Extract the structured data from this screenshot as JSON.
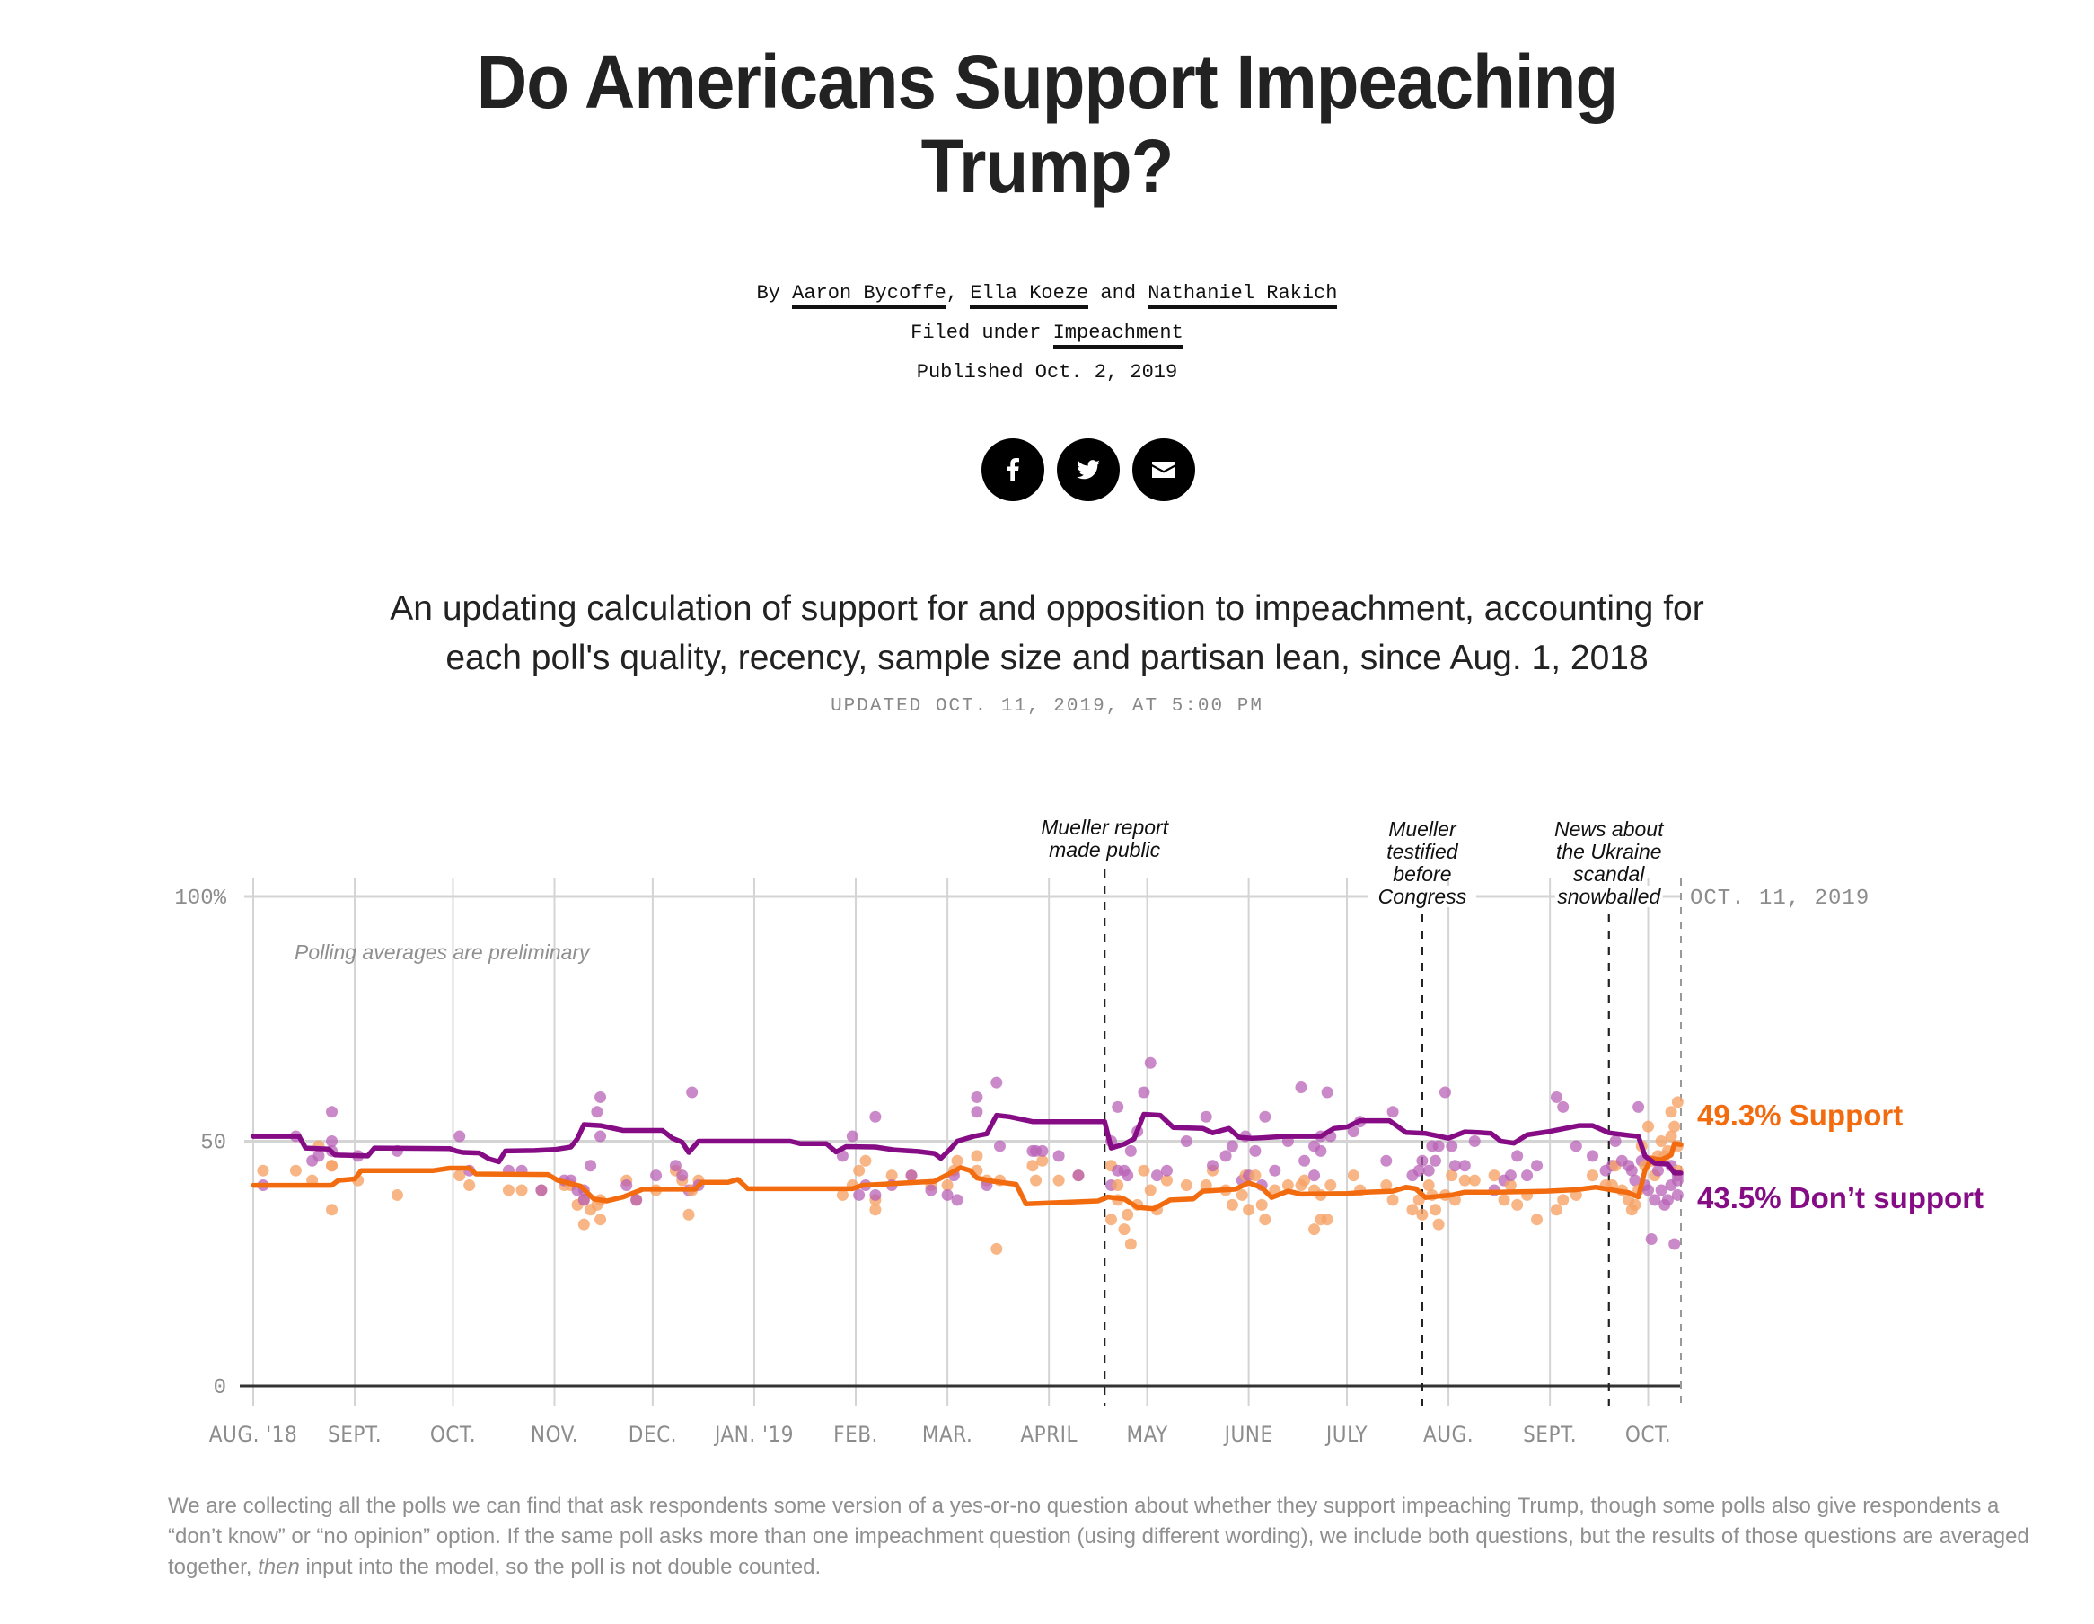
{
  "article": {
    "title_line1": "Do Americans Support Impeaching",
    "title_line2": "Trump?",
    "byline_prefix": "By",
    "authors": [
      "Aaron Bycoffe",
      "Ella Koeze",
      "Nathaniel Rakich"
    ],
    "byline_sep_comma": ",",
    "byline_sep_and": "and",
    "filed_under_label": "Filed under",
    "filed_under_topic": "Impeachment",
    "published": "Published Oct. 2, 2019",
    "share": [
      {
        "name": "facebook",
        "icon": "facebook-icon"
      },
      {
        "name": "twitter",
        "icon": "twitter-icon"
      },
      {
        "name": "email",
        "icon": "email-icon"
      }
    ],
    "subhead_line1": "An updating calculation of support for and opposition to impeachment, accounting for",
    "subhead_line2": "each poll's quality, recency, sample size and partisan lean, since Aug. 1, 2018",
    "updated": "UPDATED OCT. 11, 2019, AT 5:00 PM",
    "footnote_part1": "We are collecting all the polls we can find that ask respondents some version of a yes-or-no question about whether they support impeaching Trump, though some polls also give respondents a “don’t know” or “no opinion” option. If the same poll asks more than one impeachment question (using different wording), we include both questions, but the results of those questions are averaged together, ",
    "footnote_italic": "then",
    "footnote_part2": " input into the model, so the poll is not double counted."
  },
  "colors": {
    "support": "#F26B0F",
    "support_dot": "#F6A266",
    "oppose": "#850C85",
    "oppose_dot": "#B862B6",
    "grid": "#d4d4d4",
    "axis_text": "#8c8c8c"
  },
  "chart_data": {
    "type": "line",
    "title": "",
    "xlabel": "",
    "ylabel": "",
    "ylim": [
      0,
      100
    ],
    "x_unit": "days since Aug. 1, 2018",
    "xlim": [
      0,
      436
    ],
    "y_ticks": [
      {
        "value": 0,
        "label": "0"
      },
      {
        "value": 50,
        "label": "50"
      },
      {
        "value": 100,
        "label": "100%"
      }
    ],
    "x_ticks": [
      {
        "day": 0,
        "label": "AUG. '18"
      },
      {
        "day": 31,
        "label": "SEPT."
      },
      {
        "day": 61,
        "label": "OCT."
      },
      {
        "day": 92,
        "label": "NOV."
      },
      {
        "day": 122,
        "label": "DEC."
      },
      {
        "day": 153,
        "label": "JAN. '19"
      },
      {
        "day": 184,
        "label": "FEB."
      },
      {
        "day": 212,
        "label": "MAR."
      },
      {
        "day": 243,
        "label": "APRIL"
      },
      {
        "day": 273,
        "label": "MAY"
      },
      {
        "day": 304,
        "label": "JUNE"
      },
      {
        "day": 334,
        "label": "JULY"
      },
      {
        "day": 365,
        "label": "AUG."
      },
      {
        "day": 396,
        "label": "SEPT."
      },
      {
        "day": 426,
        "label": "OCT."
      }
    ],
    "grid": true,
    "note": "Polling averages are preliminary",
    "end_label": "OCT. 11, 2019",
    "end_day": 436,
    "events": [
      {
        "day": 260,
        "label": [
          "Mueller report",
          "made public"
        ]
      },
      {
        "day": 357,
        "label": [
          "Mueller",
          "testified",
          "before",
          "Congress"
        ]
      },
      {
        "day": 414,
        "label": [
          "News about",
          "the Ukraine",
          "scandal",
          "snowballed"
        ]
      }
    ],
    "series": [
      {
        "name": "Support",
        "final_label": "49.3% Support",
        "final_value": 49.3,
        "points": [
          [
            0,
            41
          ],
          [
            24,
            41
          ],
          [
            26,
            42
          ],
          [
            31,
            42.3
          ],
          [
            33,
            44
          ],
          [
            55,
            44
          ],
          [
            60,
            44.5
          ],
          [
            66,
            44.5
          ],
          [
            68,
            43.3
          ],
          [
            90,
            43.2
          ],
          [
            93,
            42
          ],
          [
            100,
            40.8
          ],
          [
            104,
            38.2
          ],
          [
            108,
            37.8
          ],
          [
            113,
            38.6
          ],
          [
            119,
            40.2
          ],
          [
            135,
            40.2
          ],
          [
            137,
            41.6
          ],
          [
            145,
            41.6
          ],
          [
            148,
            42.2
          ],
          [
            151,
            40.3
          ],
          [
            183,
            40.3
          ],
          [
            186,
            41
          ],
          [
            200,
            41.5
          ],
          [
            208,
            41.8
          ],
          [
            213,
            43.5
          ],
          [
            216,
            44.6
          ],
          [
            219,
            44
          ],
          [
            221,
            42.5
          ],
          [
            226,
            41.8
          ],
          [
            233,
            41.2
          ],
          [
            236,
            37.2
          ],
          [
            258,
            37.8
          ],
          [
            261,
            38.6
          ],
          [
            266,
            38.2
          ],
          [
            270,
            36.5
          ],
          [
            275,
            36.2
          ],
          [
            280,
            38
          ],
          [
            287,
            38.2
          ],
          [
            290,
            39.8
          ],
          [
            300,
            40.2
          ],
          [
            304,
            41.5
          ],
          [
            308,
            40.5
          ],
          [
            311,
            38.5
          ],
          [
            316,
            39.8
          ],
          [
            320,
            39.2
          ],
          [
            334,
            39.3
          ],
          [
            340,
            39.6
          ],
          [
            348,
            39.8
          ],
          [
            352,
            40.6
          ],
          [
            355,
            40.3
          ],
          [
            358,
            38.5
          ],
          [
            366,
            39
          ],
          [
            370,
            39.6
          ],
          [
            380,
            39.6
          ],
          [
            395,
            39.8
          ],
          [
            404,
            40.1
          ],
          [
            410,
            40.6
          ],
          [
            417,
            39.8
          ],
          [
            420,
            39.5
          ],
          [
            423,
            38.6
          ],
          [
            425,
            44
          ],
          [
            427,
            46.5
          ],
          [
            430,
            46.2
          ],
          [
            433,
            47.2
          ],
          [
            434,
            49.5
          ],
          [
            436,
            49.3
          ]
        ]
      },
      {
        "name": "Don't support",
        "final_label": "43.5% Don’t support",
        "final_value": 43.5,
        "points": [
          [
            0,
            51
          ],
          [
            14,
            51
          ],
          [
            16,
            48.6
          ],
          [
            23,
            48.4
          ],
          [
            25,
            47.2
          ],
          [
            35,
            47
          ],
          [
            37,
            48.6
          ],
          [
            60,
            48.5
          ],
          [
            62,
            48
          ],
          [
            64,
            47.7
          ],
          [
            69,
            47.6
          ],
          [
            72,
            46.4
          ],
          [
            75,
            45.8
          ],
          [
            77,
            48
          ],
          [
            86,
            48.1
          ],
          [
            92,
            48.3
          ],
          [
            97,
            48.8
          ],
          [
            99,
            50.5
          ],
          [
            101,
            53.4
          ],
          [
            106,
            53.2
          ],
          [
            113,
            52.2
          ],
          [
            125,
            52.2
          ],
          [
            128,
            50.6
          ],
          [
            131,
            49.8
          ],
          [
            133,
            47.7
          ],
          [
            136,
            50
          ],
          [
            164,
            50
          ],
          [
            167,
            49.5
          ],
          [
            175,
            49.5
          ],
          [
            178,
            47.8
          ],
          [
            181,
            48.9
          ],
          [
            190,
            48.8
          ],
          [
            196,
            48.2
          ],
          [
            203,
            47.9
          ],
          [
            208,
            47.5
          ],
          [
            210,
            46.5
          ],
          [
            213,
            48.5
          ],
          [
            215,
            50
          ],
          [
            220,
            51
          ],
          [
            224,
            51.5
          ],
          [
            227,
            55.3
          ],
          [
            231,
            55
          ],
          [
            238,
            54
          ],
          [
            260,
            54
          ],
          [
            262,
            48.6
          ],
          [
            266,
            49.4
          ],
          [
            269,
            50.5
          ],
          [
            272,
            55.5
          ],
          [
            277,
            55.3
          ],
          [
            281,
            52.8
          ],
          [
            290,
            52.6
          ],
          [
            293,
            51.7
          ],
          [
            298,
            52.6
          ],
          [
            301,
            50.8
          ],
          [
            305,
            50.6
          ],
          [
            308,
            50.7
          ],
          [
            315,
            51
          ],
          [
            326,
            51
          ],
          [
            330,
            52.6
          ],
          [
            334,
            52.9
          ],
          [
            338,
            54.2
          ],
          [
            347,
            54.2
          ],
          [
            352,
            51.8
          ],
          [
            358,
            51.6
          ],
          [
            365,
            50.6
          ],
          [
            370,
            51.9
          ],
          [
            374,
            51.8
          ],
          [
            378,
            51.6
          ],
          [
            381,
            50
          ],
          [
            385,
            49.6
          ],
          [
            389,
            51.3
          ],
          [
            396,
            52
          ],
          [
            405,
            53.2
          ],
          [
            409,
            53.2
          ],
          [
            414,
            51.7
          ],
          [
            420,
            51.2
          ],
          [
            423,
            51
          ],
          [
            425,
            47
          ],
          [
            428,
            45.5
          ],
          [
            432,
            45.3
          ],
          [
            434,
            43.5
          ],
          [
            436,
            43.5
          ]
        ]
      }
    ],
    "polls": [
      [
        3,
        44,
        41
      ],
      [
        13,
        44,
        51
      ],
      [
        18,
        42,
        46
      ],
      [
        20,
        49,
        47
      ],
      [
        24,
        45,
        48
      ],
      [
        24,
        36,
        50
      ],
      [
        24,
        45,
        56
      ],
      [
        32,
        42,
        47
      ],
      [
        44,
        39,
        48
      ],
      [
        63,
        43,
        51
      ],
      [
        66,
        41,
        44
      ],
      [
        78,
        40,
        44
      ],
      [
        82,
        40,
        44
      ],
      [
        88,
        40,
        40
      ],
      [
        95,
        41,
        42
      ],
      [
        97,
        41,
        42
      ],
      [
        99,
        37,
        40
      ],
      [
        101,
        38,
        40
      ],
      [
        101,
        33,
        38
      ],
      [
        103,
        36,
        45
      ],
      [
        106,
        34,
        59
      ],
      [
        105,
        37,
        56
      ],
      [
        106,
        38,
        51
      ],
      [
        114,
        42,
        41
      ],
      [
        117,
        38,
        38
      ],
      [
        123,
        40,
        43
      ],
      [
        129,
        44,
        45
      ],
      [
        131,
        42,
        43
      ],
      [
        133,
        35,
        40
      ],
      [
        134,
        40,
        60
      ],
      [
        136,
        42,
        41
      ],
      [
        180,
        39,
        47
      ],
      [
        183,
        41,
        51
      ],
      [
        185,
        44,
        39
      ],
      [
        187,
        46,
        41
      ],
      [
        190,
        38,
        39
      ],
      [
        190,
        36,
        55
      ],
      [
        195,
        43,
        41
      ],
      [
        201,
        43,
        43
      ],
      [
        207,
        41,
        40
      ],
      [
        212,
        41,
        39
      ],
      [
        214,
        44,
        43
      ],
      [
        215,
        46,
        38
      ],
      [
        221,
        44,
        59
      ],
      [
        221,
        47,
        56
      ],
      [
        224,
        42,
        41
      ],
      [
        227,
        28,
        62
      ],
      [
        228,
        42,
        49
      ],
      [
        238,
        45,
        48
      ],
      [
        239,
        42,
        48
      ],
      [
        241,
        46,
        48
      ],
      [
        246,
        42,
        47
      ],
      [
        252,
        43,
        43
      ],
      [
        262,
        45,
        41
      ],
      [
        262,
        34,
        50
      ],
      [
        264,
        41,
        44
      ],
      [
        264,
        38,
        57
      ],
      [
        266,
        32,
        44
      ],
      [
        267,
        35,
        43
      ],
      [
        268,
        29,
        48
      ],
      [
        270,
        37,
        52
      ],
      [
        272,
        44,
        60
      ],
      [
        274,
        40,
        66
      ],
      [
        276,
        36,
        43
      ],
      [
        279,
        42,
        44
      ],
      [
        285,
        41,
        50
      ],
      [
        291,
        41,
        55
      ],
      [
        293,
        44,
        45
      ],
      [
        297,
        40,
        47
      ],
      [
        299,
        37,
        49
      ],
      [
        302,
        39,
        42
      ],
      [
        303,
        43,
        51
      ],
      [
        304,
        36,
        43
      ],
      [
        306,
        43,
        48
      ],
      [
        308,
        37,
        41
      ],
      [
        309,
        34,
        55
      ],
      [
        312,
        40,
        44
      ],
      [
        316,
        41,
        50
      ],
      [
        320,
        41,
        61
      ],
      [
        321,
        42,
        46
      ],
      [
        324,
        40,
        49
      ],
      [
        324,
        32,
        43
      ],
      [
        326,
        39,
        48
      ],
      [
        326,
        34,
        51
      ],
      [
        328,
        34,
        60
      ],
      [
        329,
        41,
        51
      ],
      [
        336,
        43,
        52
      ],
      [
        338,
        40,
        54
      ],
      [
        346,
        41,
        46
      ],
      [
        348,
        38,
        56
      ],
      [
        354,
        36,
        43
      ],
      [
        356,
        38,
        44
      ],
      [
        357,
        35,
        46
      ],
      [
        359,
        41,
        44
      ],
      [
        360,
        39,
        49
      ],
      [
        361,
        36,
        46
      ],
      [
        362,
        33,
        49
      ],
      [
        364,
        39,
        60
      ],
      [
        366,
        43,
        49
      ],
      [
        367,
        38,
        45
      ],
      [
        370,
        42,
        45
      ],
      [
        373,
        42,
        50
      ],
      [
        379,
        43,
        40
      ],
      [
        382,
        38,
        42
      ],
      [
        384,
        41,
        43
      ],
      [
        386,
        37,
        47
      ],
      [
        389,
        39,
        43
      ],
      [
        392,
        34,
        45
      ],
      [
        398,
        36,
        59
      ],
      [
        400,
        38,
        57
      ],
      [
        404,
        39,
        49
      ],
      [
        409,
        43,
        47
      ],
      [
        413,
        41,
        44
      ],
      [
        415,
        41,
        45
      ],
      [
        416,
        45,
        50
      ],
      [
        418,
        40,
        46
      ],
      [
        420,
        38,
        45
      ],
      [
        421,
        36,
        44
      ],
      [
        422,
        37,
        42
      ],
      [
        423,
        40,
        57
      ],
      [
        424,
        49,
        46
      ],
      [
        425,
        45,
        41
      ],
      [
        426,
        53,
        40
      ],
      [
        427,
        46,
        30
      ],
      [
        428,
        43,
        38
      ],
      [
        429,
        47,
        44
      ],
      [
        430,
        50,
        40
      ],
      [
        431,
        47,
        37
      ],
      [
        432,
        48,
        38
      ],
      [
        433,
        56,
        41
      ],
      [
        433,
        51,
        45
      ],
      [
        434,
        53,
        29
      ],
      [
        435,
        58,
        39
      ],
      [
        435,
        49,
        43
      ],
      [
        435,
        44,
        42
      ]
    ]
  }
}
